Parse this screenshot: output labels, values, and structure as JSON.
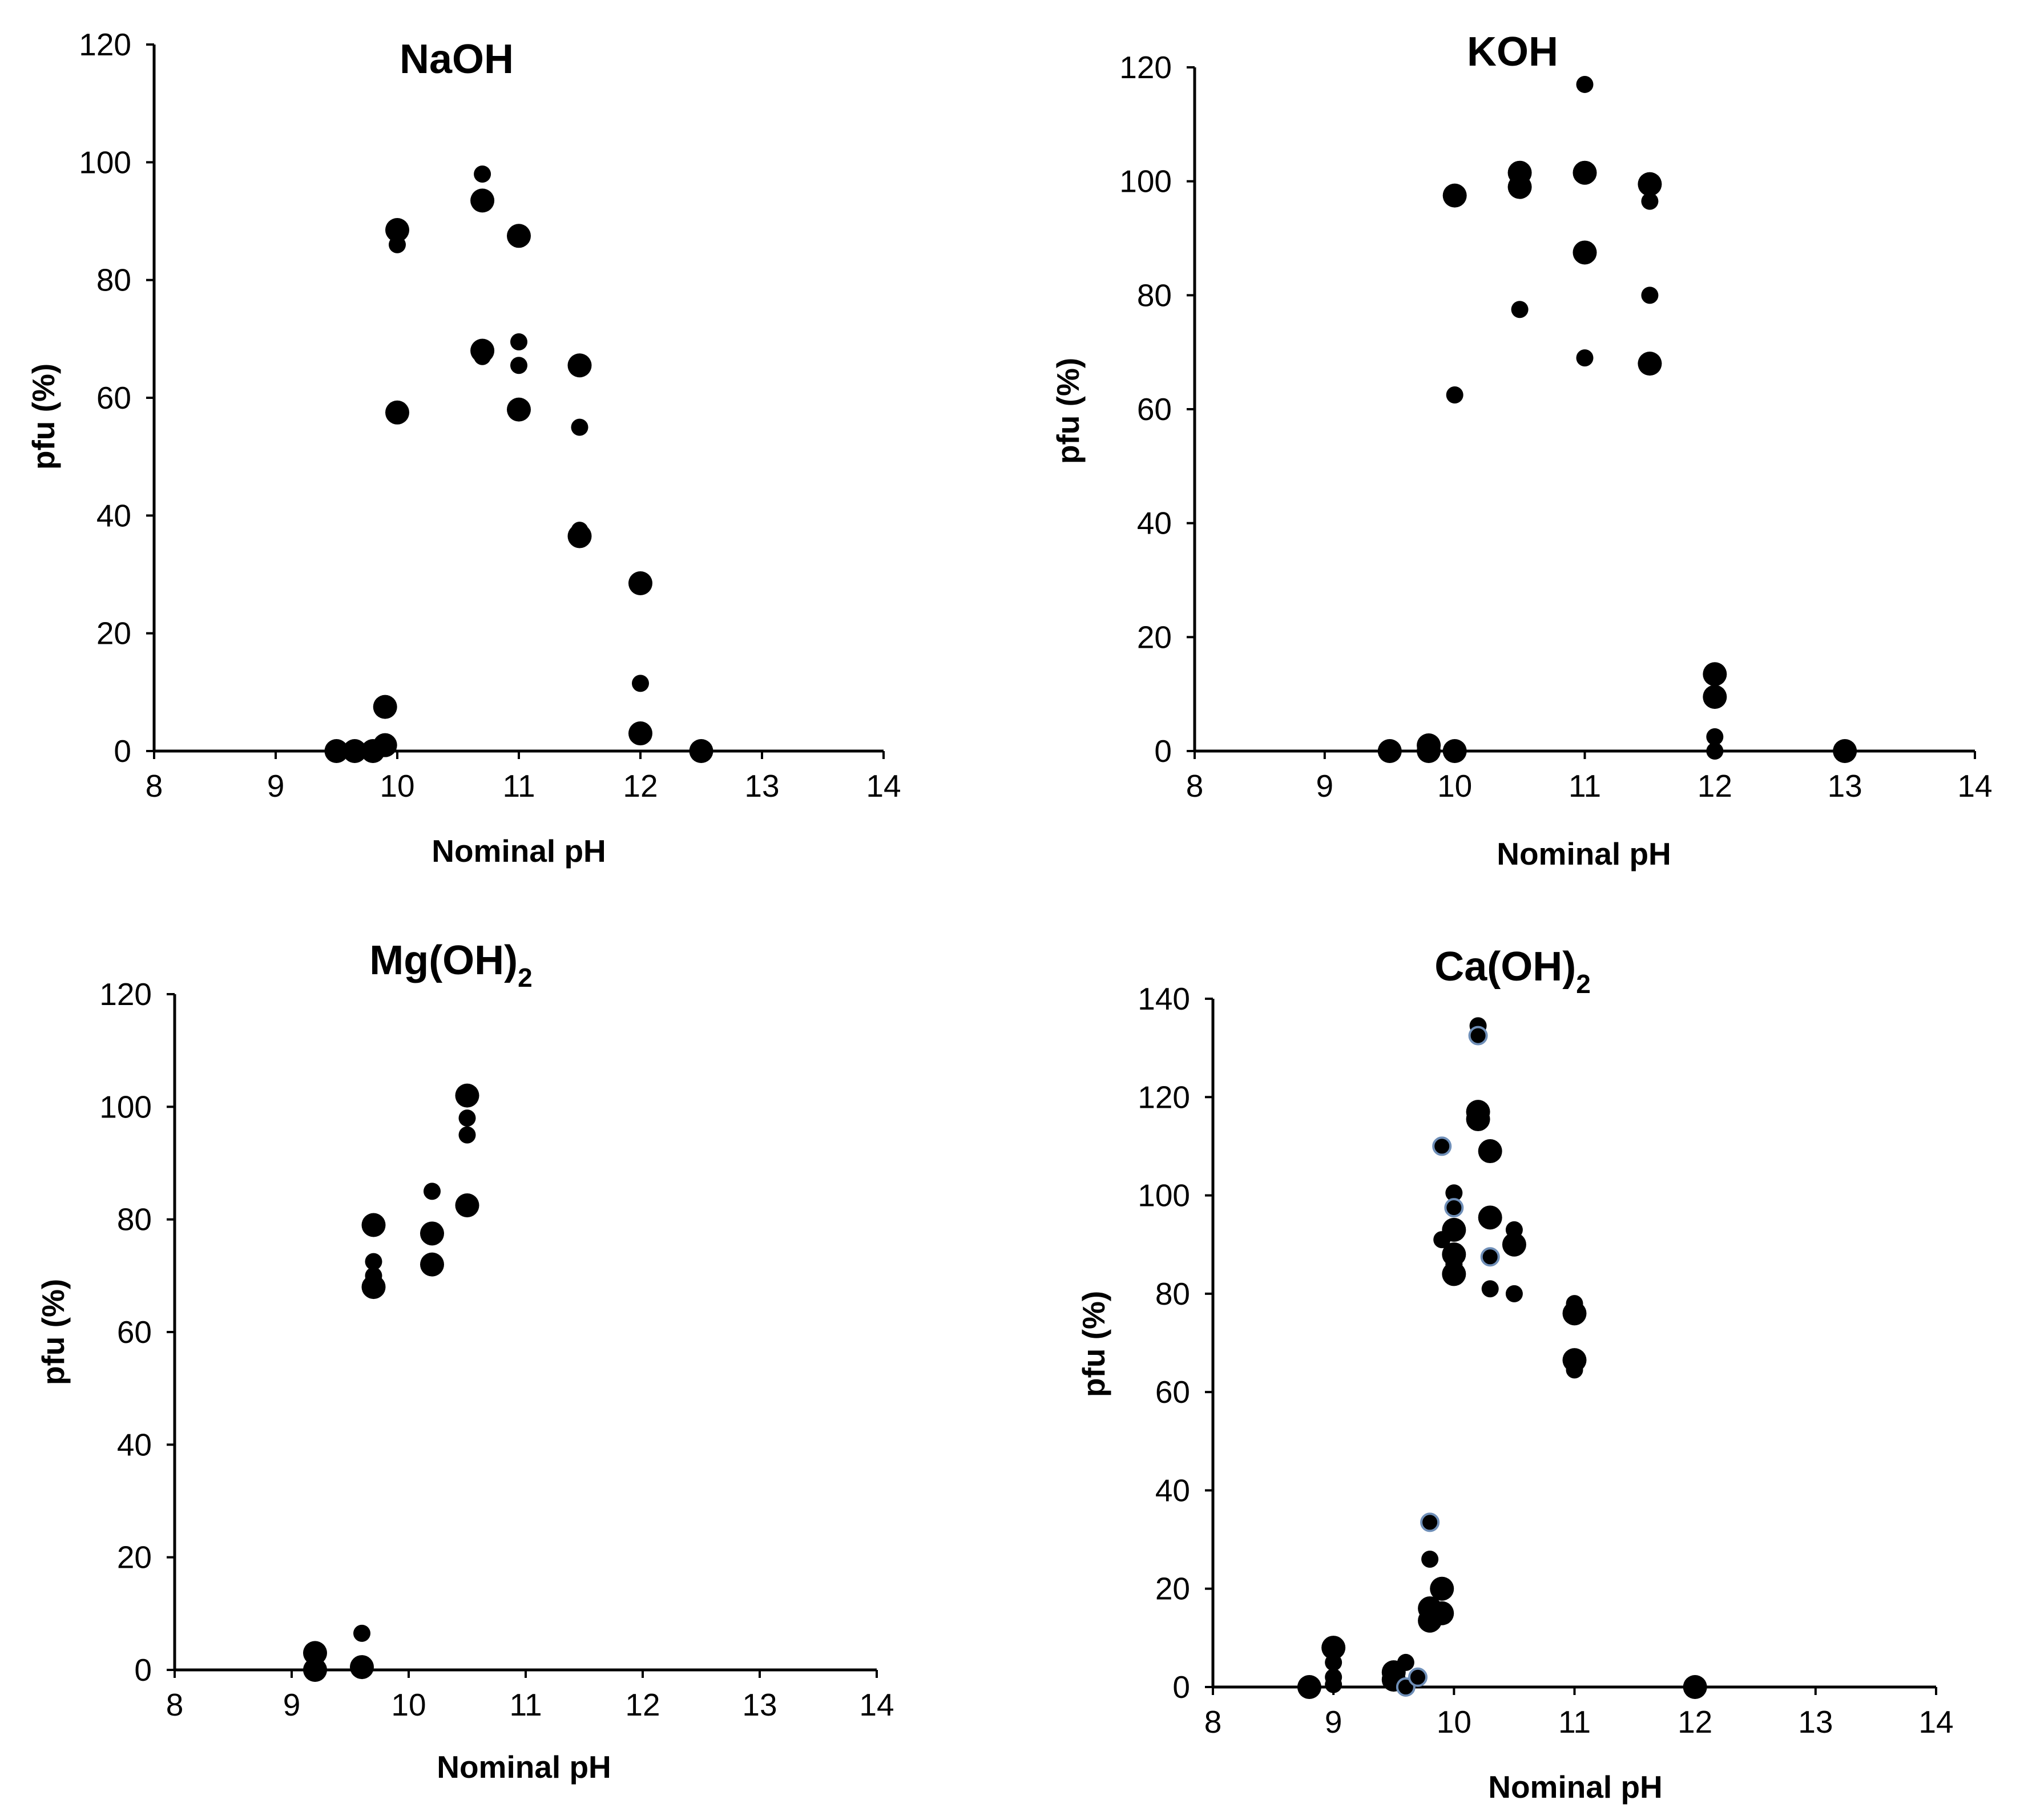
{
  "chart_data": [
    {
      "type": "scatter",
      "title": "NaOH",
      "xlabel": "Nominal pH",
      "ylabel": "pfu (%)",
      "xlim": [
        8,
        14
      ],
      "ylim": [
        0,
        120
      ],
      "xticks": [
        8,
        9,
        10,
        11,
        12,
        13,
        14
      ],
      "yticks": [
        0,
        20,
        40,
        60,
        80,
        100,
        120
      ],
      "series": [
        {
          "name": "large",
          "marker": "large",
          "points": [
            [
              9.5,
              0
            ],
            [
              9.65,
              0
            ],
            [
              9.8,
              0
            ],
            [
              9.9,
              1
            ],
            [
              9.9,
              7.5
            ],
            [
              10,
              88.5
            ],
            [
              10,
              57.5
            ],
            [
              10.7,
              93.5
            ],
            [
              10.7,
              68
            ],
            [
              11,
              87.5
            ],
            [
              11,
              58
            ],
            [
              11.5,
              65.5
            ],
            [
              11.5,
              36.5
            ],
            [
              12,
              28.5
            ],
            [
              12,
              3
            ],
            [
              12.5,
              0
            ]
          ]
        },
        {
          "name": "small",
          "marker": "small",
          "points": [
            [
              10,
              86
            ],
            [
              10.7,
              98
            ],
            [
              10.7,
              67
            ],
            [
              11,
              69.5
            ],
            [
              11,
              65.5
            ],
            [
              11.5,
              55
            ],
            [
              11.5,
              37.5
            ],
            [
              12,
              11.5
            ]
          ]
        }
      ]
    },
    {
      "type": "scatter",
      "title": "KOH",
      "xlabel": "Nominal pH",
      "ylabel": "pfu (%)",
      "xlim": [
        8,
        14
      ],
      "ylim": [
        0,
        120
      ],
      "xticks": [
        8,
        9,
        10,
        11,
        12,
        13,
        14
      ],
      "yticks": [
        0,
        20,
        40,
        60,
        80,
        100,
        120
      ],
      "series": [
        {
          "name": "large",
          "marker": "large",
          "points": [
            [
              9.5,
              0
            ],
            [
              9.8,
              1
            ],
            [
              9.8,
              0
            ],
            [
              10,
              97.5
            ],
            [
              10,
              0
            ],
            [
              10.5,
              101.5
            ],
            [
              10.5,
              99
            ],
            [
              11,
              101.5
            ],
            [
              11,
              87.5
            ],
            [
              11.5,
              99.5
            ],
            [
              11.5,
              68
            ],
            [
              12,
              13.5
            ],
            [
              12,
              9.5
            ],
            [
              13,
              0
            ]
          ]
        },
        {
          "name": "small",
          "marker": "small",
          "points": [
            [
              10,
              62.5
            ],
            [
              10.5,
              77.5
            ],
            [
              11,
              117
            ],
            [
              11,
              69
            ],
            [
              11.5,
              96.5
            ],
            [
              11.5,
              80
            ],
            [
              12,
              2.5
            ],
            [
              12,
              0
            ]
          ]
        }
      ]
    },
    {
      "type": "scatter",
      "title": "Mg(OH)",
      "title_subscript": "2",
      "xlabel": "Nominal pH",
      "ylabel": "pfu (%)",
      "xlim": [
        8,
        14
      ],
      "ylim": [
        0,
        120
      ],
      "xticks": [
        8,
        9,
        10,
        11,
        12,
        13,
        14
      ],
      "yticks": [
        0,
        20,
        40,
        60,
        80,
        100,
        120
      ],
      "series": [
        {
          "name": "large",
          "marker": "large",
          "points": [
            [
              9.2,
              3
            ],
            [
              9.2,
              0
            ],
            [
              9.6,
              0.5
            ],
            [
              9.7,
              79
            ],
            [
              9.7,
              68
            ],
            [
              10.2,
              77.5
            ],
            [
              10.2,
              72
            ],
            [
              10.5,
              102
            ],
            [
              10.5,
              82.5
            ]
          ]
        },
        {
          "name": "small",
          "marker": "small",
          "points": [
            [
              9.6,
              6.5
            ],
            [
              9.7,
              72.5
            ],
            [
              9.7,
              70
            ],
            [
              10.2,
              85
            ],
            [
              10.5,
              98
            ],
            [
              10.5,
              95
            ]
          ]
        }
      ]
    },
    {
      "type": "scatter",
      "title": "Ca(OH)",
      "title_subscript": "2",
      "xlabel": "Nominal pH",
      "ylabel": "pfu (%)",
      "xlim": [
        8,
        14
      ],
      "ylim": [
        0,
        140
      ],
      "xticks": [
        8,
        9,
        10,
        11,
        12,
        13,
        14
      ],
      "yticks": [
        0,
        20,
        40,
        60,
        80,
        100,
        120,
        140
      ],
      "series": [
        {
          "name": "large",
          "marker": "large",
          "points": [
            [
              8.8,
              0
            ],
            [
              9,
              8
            ],
            [
              9.5,
              3
            ],
            [
              9.5,
              1.5
            ],
            [
              9.8,
              16
            ],
            [
              9.8,
              13.5
            ],
            [
              9.9,
              20
            ],
            [
              9.9,
              15
            ],
            [
              10,
              93
            ],
            [
              10,
              88
            ],
            [
              10,
              84
            ],
            [
              10.2,
              117
            ],
            [
              10.2,
              115.5
            ],
            [
              10.3,
              109
            ],
            [
              10.3,
              95.5
            ],
            [
              10.5,
              90
            ],
            [
              11,
              76
            ],
            [
              11,
              66.5
            ],
            [
              12,
              0
            ]
          ]
        },
        {
          "name": "small",
          "marker": "small",
          "points": [
            [
              9,
              5
            ],
            [
              9,
              2
            ],
            [
              9,
              0.5
            ],
            [
              9.6,
              5
            ],
            [
              9.8,
              26
            ],
            [
              9.9,
              91
            ],
            [
              10,
              100.5
            ],
            [
              10,
              86
            ],
            [
              10.2,
              134.5
            ],
            [
              10.3,
              81
            ],
            [
              10.5,
              93
            ],
            [
              10.5,
              80
            ],
            [
              11,
              78
            ],
            [
              11,
              64.5
            ]
          ]
        },
        {
          "name": "outlined",
          "marker": "outlined",
          "points": [
            [
              9.6,
              0
            ],
            [
              9.7,
              2
            ],
            [
              9.8,
              33.5
            ],
            [
              9.9,
              110
            ],
            [
              10,
              97.5
            ],
            [
              10.2,
              132.5
            ],
            [
              10.3,
              87.5
            ]
          ]
        }
      ]
    }
  ]
}
